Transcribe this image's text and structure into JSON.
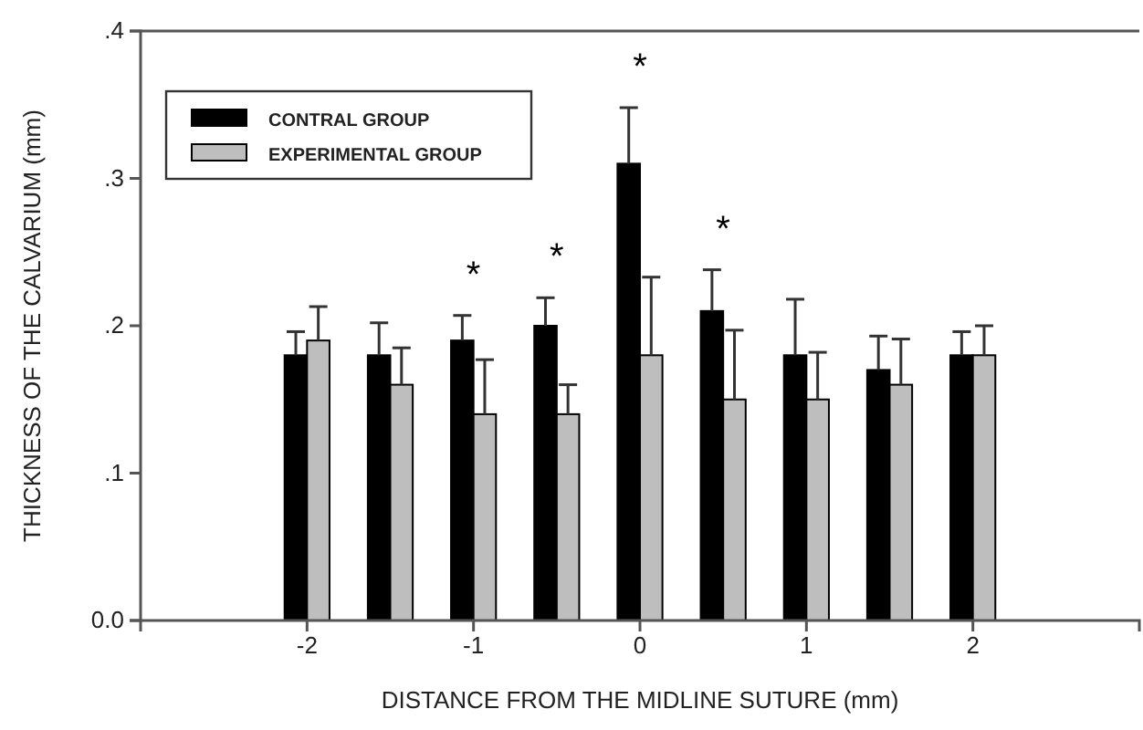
{
  "chart_data": {
    "type": "bar",
    "xlabel": "DISTANCE FROM THE MIDLINE SUTURE (mm)",
    "ylabel": "THICKNESS OF THE CALVARIUM (mm)",
    "x": [
      -2,
      -1.5,
      -1,
      -0.5,
      0,
      0.5,
      1,
      1.5,
      2
    ],
    "series": [
      {
        "name": "CONTRAL GROUP",
        "color": "#000000",
        "values": [
          0.18,
          0.18,
          0.19,
          0.2,
          0.31,
          0.21,
          0.18,
          0.17,
          0.18
        ],
        "errors": [
          [
            0.18,
            0.196
          ],
          [
            0.18,
            0.202
          ],
          [
            0.19,
            0.207
          ],
          [
            0.2,
            0.219
          ],
          [
            0.31,
            0.348
          ],
          [
            0.21,
            0.238
          ],
          [
            0.18,
            0.218
          ],
          [
            0.17,
            0.193
          ],
          [
            0.18,
            0.196
          ]
        ]
      },
      {
        "name": "EXPERIMENTAL GROUP",
        "color": "#bebebe",
        "values": [
          0.19,
          0.16,
          0.14,
          0.14,
          0.18,
          0.15,
          0.15,
          0.16,
          0.18
        ],
        "errors": [
          [
            0.19,
            0.213
          ],
          [
            0.16,
            0.185
          ],
          [
            0.14,
            0.177
          ],
          [
            0.14,
            0.16
          ],
          [
            0.18,
            0.233
          ],
          [
            0.15,
            0.197
          ],
          [
            0.15,
            0.182
          ],
          [
            0.16,
            0.191
          ],
          [
            0.18,
            0.2
          ]
        ]
      }
    ],
    "xlim": [
      -3,
      3
    ],
    "xticks": [
      -2,
      -1,
      0,
      1,
      2
    ],
    "ylim": [
      0,
      0.4
    ],
    "yticks": [
      {
        "value": 0,
        "label": "0.0"
      },
      {
        "value": 0.1,
        "label": ".1"
      },
      {
        "value": 0.2,
        "label": ".2"
      },
      {
        "value": 0.3,
        "label": ".3"
      },
      {
        "value": 0.4,
        "label": ".4"
      }
    ],
    "annotations": [
      {
        "text": "*",
        "x": -1,
        "y": 0.207
      },
      {
        "text": "*",
        "x": -0.5,
        "y": 0.219
      },
      {
        "text": "*",
        "x": 0,
        "y": 0.348
      },
      {
        "text": "*",
        "x": 0.5,
        "y": 0.238
      }
    ],
    "legend": "top left",
    "grid": false
  }
}
